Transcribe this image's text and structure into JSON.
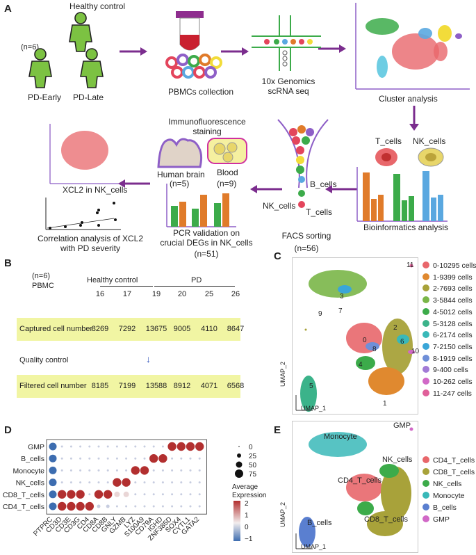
{
  "panel_a": {
    "label": "A",
    "healthy_control": "Healthy control",
    "n6": "(n=6)",
    "pd_early": "PD-Early",
    "pd_late": "PD-Late",
    "pbmcs": "PBMCs collection",
    "tenx_line1": "10x Genomics",
    "tenx_line2": "scRNA seq",
    "cluster": "Cluster analysis",
    "xcl2_nk": "XCL2 in NK_cells",
    "corr_line1": "Correlation analysis of XCL2",
    "corr_line2": "with PD severity",
    "if_line1": "Immunofluorescence",
    "if_line2": "staining",
    "human_brain": "Human brain",
    "n5": "(n=5)",
    "blood": "Blood",
    "n9": "(n=9)",
    "pcr_line1": "PCR validation on",
    "pcr_line2": "crucial DEGs in NK_cells",
    "n51": "(n=51)",
    "b_cells": "B_cells",
    "nk_cells": "NK_cells",
    "t_cells": "T_cells",
    "facs": "FACS sorting",
    "n56": "(n=56)",
    "t_cells_cell": "T_cells",
    "nk_cells_cell": "NK_cells",
    "bioinfo": "Bioinformatics analysis",
    "colors": {
      "arrow": "#7b2d8e",
      "green": "#3cab4a",
      "orange": "#e07b2a",
      "blue": "#5aa8e0",
      "pink": "#e3455c"
    }
  },
  "panel_b": {
    "label": "B",
    "n6": "(n=6)",
    "pbmc": "PBMC",
    "healthy_control": "Healthy control",
    "pd": "PD",
    "samples": [
      "16",
      "17",
      "19",
      "20",
      "25",
      "26"
    ],
    "captured_label": "Captured cell number",
    "captured_values": [
      "8269",
      "7292",
      "13675",
      "9005",
      "4110",
      "8647"
    ],
    "qc_label": "Quality control",
    "qc_arrow": "↓",
    "filtered_label": "Filtered cell number",
    "filtered_values": [
      "8185",
      "7199",
      "13588",
      "8912",
      "4071",
      "6568"
    ]
  },
  "panel_c": {
    "label": "C",
    "umap1": "UMAP_1",
    "umap2": "UMAP_2",
    "cluster_labels": [
      "0",
      "1",
      "2",
      "3",
      "4",
      "5",
      "6",
      "7",
      "8",
      "9",
      "10",
      "11"
    ],
    "legend": [
      {
        "text": "0-10295 cells",
        "color": "#e8676b"
      },
      {
        "text": "1-9399 cells",
        "color": "#e0892f"
      },
      {
        "text": "2-7693 cells",
        "color": "#a8a23a"
      },
      {
        "text": "3-5844 cells",
        "color": "#7ab648"
      },
      {
        "text": "4-5012 cells",
        "color": "#3cab4a"
      },
      {
        "text": "5-3128 cells",
        "color": "#3bb38a"
      },
      {
        "text": "6-2174 cells",
        "color": "#39b8b8"
      },
      {
        "text": "7-2150 cells",
        "color": "#3aa6d8"
      },
      {
        "text": "8-1919 cells",
        "color": "#6f8fd8"
      },
      {
        "text": "9-400 cells",
        "color": "#a27bd6"
      },
      {
        "text": "10-262 cells",
        "color": "#d169c7"
      },
      {
        "text": "11-247 cells",
        "color": "#e0609a"
      }
    ]
  },
  "panel_d": {
    "label": "D",
    "cell_types": [
      "GMP",
      "B_cells",
      "Monocyte",
      "NK_cells",
      "CD8_T_cells",
      "CD4_T_cells"
    ],
    "genes": [
      "PTPRC",
      "CD3D",
      "CD3E",
      "CD3G",
      "CD4",
      "CD8A",
      "CD8B",
      "GNLY",
      "GZMB",
      "LYZ",
      "S100A9",
      "CD79A",
      "IGHD",
      "ZNF385D",
      "SOX4",
      "CYTL1",
      "GATA2"
    ],
    "size_legend_title": "",
    "size_values": [
      "0",
      "25",
      "50",
      "75"
    ],
    "expr_title_1": "Average",
    "expr_title_2": "Expression",
    "expr_ticks": [
      "2",
      "1",
      "0",
      "−1"
    ]
  },
  "panel_e": {
    "label": "E",
    "umap1": "UMAP_1",
    "umap2": "UMAP_2",
    "gmp": "GMP",
    "monocyte": "Monocyte",
    "nk_cells": "NK_cells",
    "cd4": "CD4_T_cells",
    "cd8": "CD8_T_cells",
    "b_cells": "B_cells",
    "legend": [
      {
        "text": "CD4_T_cells",
        "color": "#e8676b"
      },
      {
        "text": "CD8_T_cells",
        "color": "#a8a23a"
      },
      {
        "text": "NK_cells",
        "color": "#3cab4a"
      },
      {
        "text": "Monocyte",
        "color": "#39b8b8"
      },
      {
        "text": "B_cells",
        "color": "#5a7fd0"
      },
      {
        "text": "GMP",
        "color": "#d169c7"
      }
    ]
  }
}
